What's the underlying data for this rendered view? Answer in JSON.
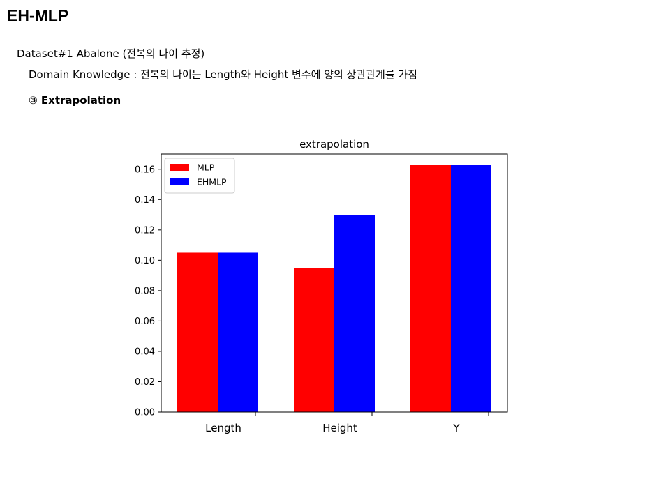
{
  "slide": {
    "title": "EH-MLP",
    "dataset_line": "Dataset#1 Abalone (전복의 나이 추정)",
    "knowledge_line": "Domain Knowledge : 전복의 나이는 Length와 Height 변수에 양의 상관관계를 가짐",
    "section_line": "③ Extrapolation"
  },
  "colors": {
    "mlp": "#ff0000",
    "ehmlp": "#0000ff",
    "rule": "#c9a27e"
  },
  "chart_data": {
    "type": "bar",
    "title": "extrapolation",
    "categories": [
      "Length",
      "Height",
      "Y"
    ],
    "series": [
      {
        "name": "MLP",
        "values": [
          0.105,
          0.095,
          0.163
        ]
      },
      {
        "name": "EHMLP",
        "values": [
          0.105,
          0.13,
          0.163
        ]
      }
    ],
    "xlabel": "",
    "ylabel": "",
    "ylim": [
      0,
      0.17
    ],
    "yticks": [
      "0.00",
      "0.02",
      "0.04",
      "0.06",
      "0.08",
      "0.10",
      "0.12",
      "0.14",
      "0.16"
    ],
    "grid": false,
    "legend": "top-left"
  }
}
